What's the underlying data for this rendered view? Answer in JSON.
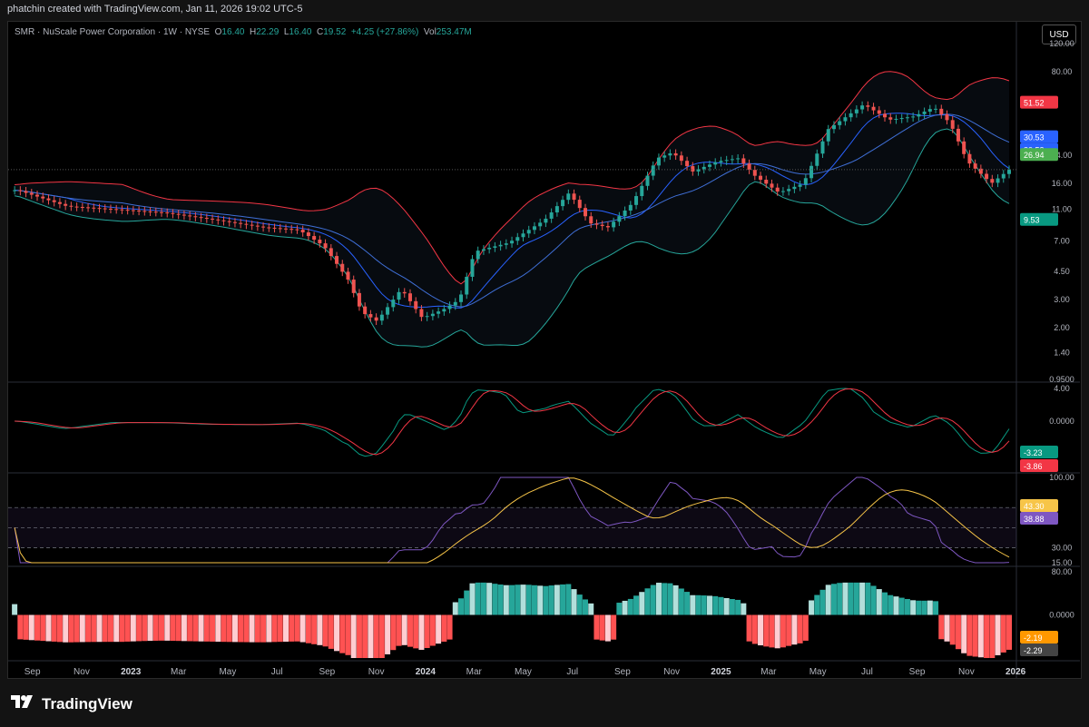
{
  "header": {
    "title": "phatchin created with TradingView.com, Jan 11, 2026 19:02 UTC-5"
  },
  "legend": {
    "symbol": "SMR · NuScale Power Corporation · 1W · NYSE",
    "open_label": "O",
    "open": "16.40",
    "high_label": "H",
    "high": "22.29",
    "low_label": "L",
    "low": "16.40",
    "close_label": "C",
    "close": "19.52",
    "change": "+4.25 (+27.86%)",
    "vol_label": "Vol",
    "vol": "253.47M"
  },
  "currency_button": "USD",
  "brand": {
    "name": "TradingView",
    "icon": "tradingview-logo-icon"
  },
  "colors": {
    "up": "#26a69a",
    "down": "#ef5350",
    "upper_band": "#f23645",
    "lower_band": "#26a69a",
    "ma": "#2962ff",
    "rsi": "#7e57c2",
    "rsi_ma": "#f7c548",
    "hist_up_strong": "#26a69a",
    "hist_up_weak": "#b2dfdb",
    "hist_down_strong": "#ff5252",
    "hist_down_weak": "#ffcdd2"
  },
  "chart_data": [
    {
      "type": "candlestick",
      "title": "SMR · NuScale Power Corporation · 1W · NYSE",
      "scale": "log",
      "ylim": [
        0.95,
        120
      ],
      "y_ticks": [
        "120.00",
        "80.00",
        "51.52",
        "30.53",
        "30.53",
        "26.94",
        "24.00",
        "16.00",
        "11.00",
        "9.53",
        "7.00",
        "4.50",
        "3.00",
        "2.00",
        "1.40",
        "0.9500"
      ],
      "x_ticks": [
        "Sep",
        "Nov",
        "2023",
        "Mar",
        "May",
        "Jul",
        "Sep",
        "Nov",
        "2024",
        "Mar",
        "May",
        "Jul",
        "Sep",
        "Nov",
        "2025",
        "Mar",
        "May",
        "Jul",
        "Sep",
        "Nov",
        "2026"
      ],
      "price_labels": [
        {
          "value": "51.52",
          "color": "#f23645"
        },
        {
          "value": "30.53",
          "color": "#2962ff"
        },
        {
          "value": "30.53",
          "color": "#2962ff"
        },
        {
          "value": "26.94",
          "color": "#4caf50"
        },
        {
          "value": "9.53",
          "color": "#089981"
        }
      ],
      "close_path": [
        [
          "2022-09-01",
          14.5
        ],
        [
          "2022-11-01",
          11.5
        ],
        [
          "2023-01-01",
          11.0
        ],
        [
          "2023-03-01",
          10.5
        ],
        [
          "2023-05-01",
          9.5
        ],
        [
          "2023-07-01",
          8.5
        ],
        [
          "2023-08-15",
          8.2
        ],
        [
          "2023-09-15",
          6.5
        ],
        [
          "2023-10-15",
          4.0
        ],
        [
          "2023-11-01",
          2.5
        ],
        [
          "2023-11-20",
          2.2
        ],
        [
          "2023-12-20",
          3.5
        ],
        [
          "2024-01-15",
          2.3
        ],
        [
          "2024-02-10",
          2.6
        ],
        [
          "2024-03-01",
          3.0
        ],
        [
          "2024-03-20",
          6.0
        ],
        [
          "2024-05-01",
          6.8
        ],
        [
          "2024-06-15",
          9.5
        ],
        [
          "2024-07-15",
          14.0
        ],
        [
          "2024-08-10",
          9.0
        ],
        [
          "2024-09-01",
          8.5
        ],
        [
          "2024-10-01",
          12.0
        ],
        [
          "2024-11-01",
          23.0
        ],
        [
          "2024-11-20",
          25.0
        ],
        [
          "2024-12-15",
          19.0
        ],
        [
          "2025-01-15",
          22.0
        ],
        [
          "2025-02-10",
          23.0
        ],
        [
          "2025-03-01",
          18.0
        ],
        [
          "2025-04-01",
          14.0
        ],
        [
          "2025-05-01",
          16.0
        ],
        [
          "2025-06-01",
          35.0
        ],
        [
          "2025-07-15",
          50.0
        ],
        [
          "2025-08-15",
          40.0
        ],
        [
          "2025-09-15",
          42.0
        ],
        [
          "2025-10-10",
          48.0
        ],
        [
          "2025-10-30",
          38.0
        ],
        [
          "2025-11-20",
          22.0
        ],
        [
          "2025-12-20",
          16.0
        ],
        [
          "2026-01-11",
          19.52
        ]
      ]
    },
    {
      "type": "line",
      "ylim": [
        -6,
        4
      ],
      "y_ticks": [
        "4.00",
        "0.0000"
      ],
      "series": [
        {
          "values": [
            -3.23
          ],
          "color": "#4caf50"
        },
        {
          "values": [
            -3.86
          ],
          "color": "#f23645"
        }
      ],
      "last_values": [
        {
          "value": "-3.23",
          "color": "#089981"
        },
        {
          "value": "-3.86",
          "color": "#f23645"
        }
      ]
    },
    {
      "type": "line",
      "ylim": [
        15,
        100
      ],
      "y_ticks": [
        "100.00",
        "30.00",
        "15.00"
      ],
      "bands": [
        70,
        50,
        30
      ],
      "last_values": [
        {
          "value": "43.30",
          "color": "#f7c548"
        },
        {
          "value": "38.88",
          "color": "#7e57c2"
        }
      ]
    },
    {
      "type": "bar",
      "ylim": [
        -80,
        80
      ],
      "y_ticks": [
        "80.00",
        "0.0000"
      ],
      "last_values": [
        {
          "value": "-2.19",
          "color": "#ff9800"
        },
        {
          "value": "-2.29",
          "color": "#ffffff"
        }
      ]
    }
  ]
}
